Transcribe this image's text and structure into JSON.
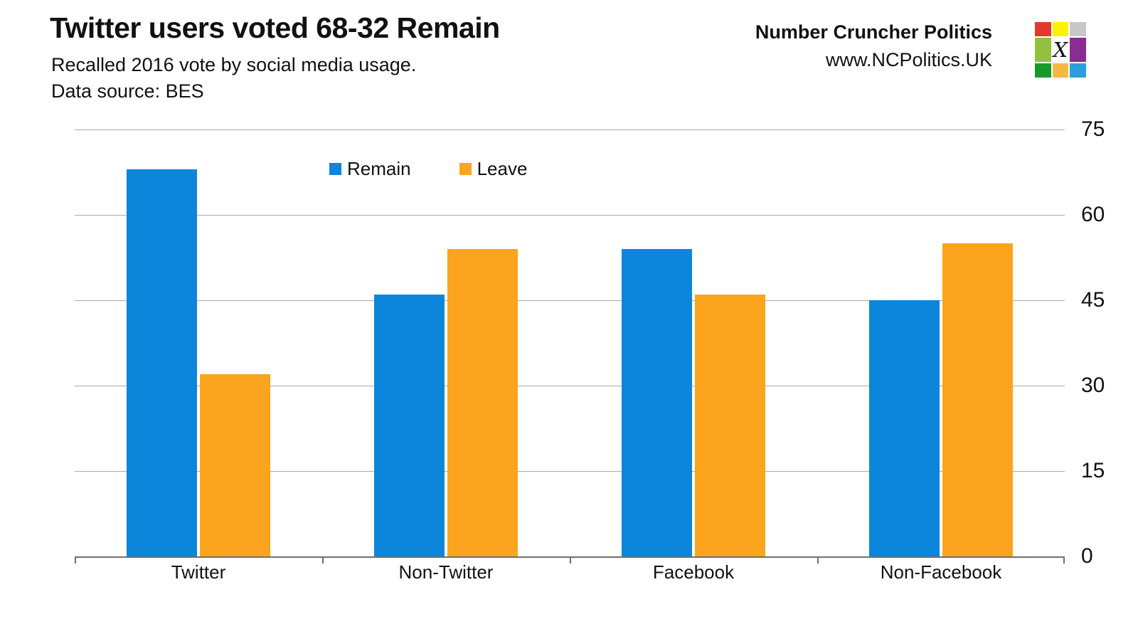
{
  "header": {
    "title": "Twitter users voted 68-32 Remain",
    "subtitle": "Recalled 2016 vote by social media usage.",
    "source": "Data source: BES",
    "brand_name": "Number Cruncher Politics",
    "brand_url": "www.NCPolitics.UK"
  },
  "logo": {
    "description": "number-cruncher-politics-logo",
    "grid_colors": [
      [
        "#e3392c",
        "#fcf200",
        "#c8c8c8"
      ],
      [
        "#93c13e",
        "#ffffff",
        "#892c93"
      ],
      [
        "#169b2b",
        "#f7b843",
        "#2b9fde"
      ]
    ],
    "x_mark": "X"
  },
  "chart_data": {
    "type": "bar",
    "title": "Twitter users voted 68-32 Remain",
    "subtitle": "Recalled 2016 vote by social media usage.",
    "source": "Data source: BES",
    "categories": [
      "Twitter",
      "Non-Twitter",
      "Facebook",
      "Non-Facebook"
    ],
    "series": [
      {
        "name": "Remain",
        "color": "#0c86da",
        "values": [
          68,
          46,
          54,
          45
        ]
      },
      {
        "name": "Leave",
        "color": "#faa51d",
        "values": [
          32,
          54,
          46,
          55
        ]
      }
    ],
    "xlabel": "",
    "ylabel": "",
    "ylim": [
      0,
      75
    ],
    "yticks": [
      0,
      15,
      30,
      45,
      60,
      75
    ],
    "y_axis_side": "right",
    "grid": "horizontal",
    "legend_position": "top-center"
  },
  "colors": {
    "remain": "#0c86da",
    "leave": "#faa51d",
    "gridline": "#a8a8a8",
    "axis": "#6f6f6f",
    "text": "#111111",
    "background": "#ffffff"
  }
}
